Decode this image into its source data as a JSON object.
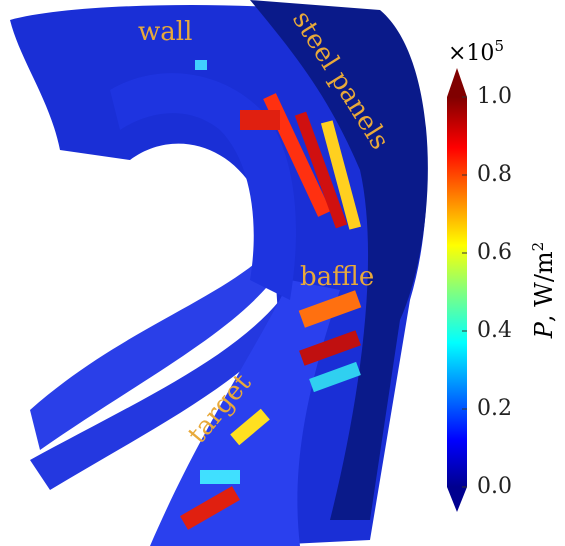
{
  "chart_data": {
    "type": "colorbar",
    "annotations": [
      "wall",
      "steel panels",
      "baffle",
      "target"
    ],
    "multiplier": "×10",
    "multiplier_exponent": "5",
    "colorbar_label": "P",
    "colorbar_units": ", W/m",
    "colorbar_units_exponent": "2",
    "ylim": [
      0,
      1
    ],
    "yticks": [
      {
        "value": 0,
        "label": "0.0"
      },
      {
        "value": 0.2,
        "label": "0.2"
      },
      {
        "value": 0.4,
        "label": "0.4"
      },
      {
        "value": 0.6,
        "label": "0.6"
      },
      {
        "value": 0.8,
        "label": "0.8"
      },
      {
        "value": 1,
        "label": "1.0"
      }
    ],
    "colormap": "jet"
  }
}
